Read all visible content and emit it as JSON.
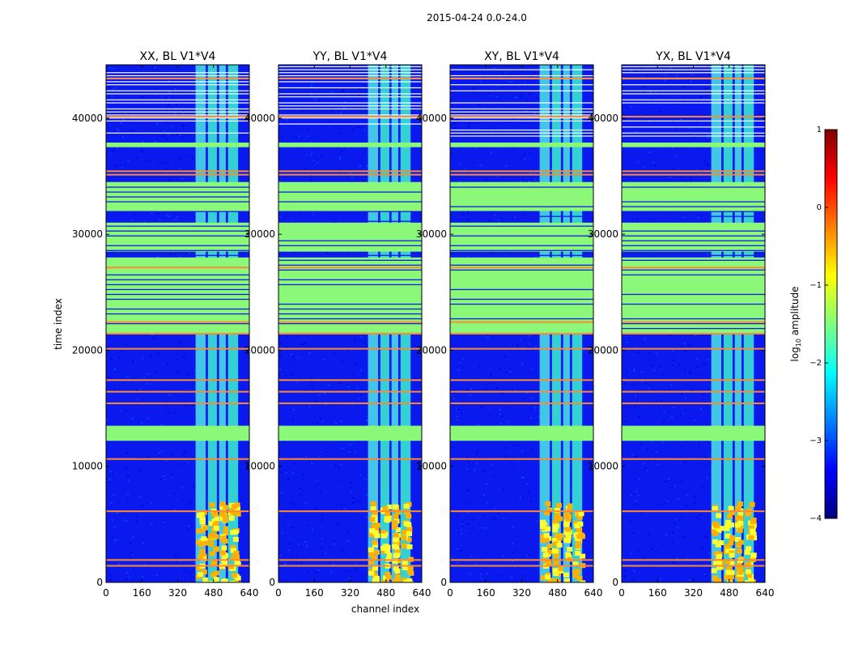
{
  "figure_title": "2015-04-24 0.0-24.0",
  "xlabel": "channel index",
  "ylabel": "time index",
  "colorbar_label": "log10 amplitude",
  "colorbar_label_main": "log",
  "colorbar_label_sub": "10",
  "colorbar_label_tail": " amplitude",
  "colormap": [
    "#00007f",
    "#0000ff",
    "#007fff",
    "#00ffff",
    "#7fff7f",
    "#ffff00",
    "#ff7f00",
    "#ff0000",
    "#7f0000"
  ],
  "chart_data": [
    {
      "type": "heatmap",
      "title": "XX, BL V1*V4",
      "xlabel": "channel index",
      "ylabel": "time index",
      "xlim": [
        0,
        640
      ],
      "ylim": [
        0,
        44600
      ],
      "xticks": [
        0,
        160,
        320,
        480,
        640
      ],
      "yticks": [
        0,
        10000,
        20000,
        30000,
        40000
      ],
      "band_channels": [
        [
          400,
          445
        ],
        [
          455,
          495
        ],
        [
          505,
          535
        ],
        [
          545,
          590
        ]
      ],
      "bright_time_ranges": [
        [
          21500,
          28000
        ],
        [
          28500,
          31000
        ],
        [
          32000,
          34500
        ],
        [
          12200,
          13500
        ],
        [
          37500,
          37900
        ]
      ],
      "flag_lines": [
        1500,
        2000,
        6200,
        10700,
        15500,
        16500,
        17500,
        20200,
        21500,
        22500,
        27200,
        35200,
        35500,
        40200,
        43500
      ],
      "colorbar": {
        "label": "log10 amplitude",
        "range": [
          -4,
          1
        ],
        "ticks": [
          1,
          0,
          -1,
          -2,
          -3,
          -4
        ]
      }
    },
    {
      "type": "heatmap",
      "title": "YY, BL V1*V4",
      "xlabel": "channel index",
      "ylabel": "time index",
      "xlim": [
        0,
        640
      ],
      "ylim": [
        0,
        44600
      ],
      "xticks": [
        0,
        160,
        320,
        480,
        640
      ],
      "yticks": [
        0,
        10000,
        20000,
        30000,
        40000
      ],
      "band_channels": [
        [
          400,
          445
        ],
        [
          455,
          495
        ],
        [
          505,
          535
        ],
        [
          545,
          590
        ]
      ],
      "bright_time_ranges": [
        [
          21500,
          28000
        ],
        [
          28500,
          31000
        ],
        [
          32000,
          34500
        ],
        [
          12200,
          13500
        ],
        [
          37500,
          37900
        ]
      ],
      "flag_lines": [
        1500,
        2000,
        6200,
        10700,
        15500,
        16500,
        17500,
        20200,
        21500,
        22500,
        27200,
        35200,
        35500,
        40200,
        43500
      ]
    },
    {
      "type": "heatmap",
      "title": "XY, BL V1*V4",
      "xlabel": "channel index",
      "ylabel": "time index",
      "xlim": [
        0,
        640
      ],
      "ylim": [
        0,
        44600
      ],
      "xticks": [
        0,
        160,
        320,
        480,
        640
      ],
      "yticks": [
        0,
        10000,
        20000,
        30000,
        40000
      ],
      "band_channels": [
        [
          400,
          445
        ],
        [
          455,
          495
        ],
        [
          505,
          535
        ],
        [
          545,
          590
        ]
      ],
      "bright_time_ranges": [
        [
          21500,
          28000
        ],
        [
          28500,
          31000
        ],
        [
          32000,
          34500
        ],
        [
          12200,
          13500
        ],
        [
          37500,
          37900
        ]
      ],
      "flag_lines": [
        1500,
        2000,
        6200,
        10700,
        15500,
        16500,
        17500,
        20200,
        21500,
        22500,
        27200,
        35200,
        35500,
        40200,
        43500
      ]
    },
    {
      "type": "heatmap",
      "title": "YX, BL V1*V4",
      "xlabel": "channel index",
      "ylabel": "time index",
      "xlim": [
        0,
        640
      ],
      "ylim": [
        0,
        44600
      ],
      "xticks": [
        0,
        160,
        320,
        480,
        640
      ],
      "yticks": [
        0,
        10000,
        20000,
        30000,
        40000
      ],
      "band_channels": [
        [
          400,
          445
        ],
        [
          455,
          495
        ],
        [
          505,
          535
        ],
        [
          545,
          590
        ]
      ],
      "bright_time_ranges": [
        [
          21500,
          28000
        ],
        [
          28500,
          31000
        ],
        [
          32000,
          34500
        ],
        [
          12200,
          13500
        ],
        [
          37500,
          37900
        ]
      ],
      "flag_lines": [
        1500,
        2000,
        6200,
        10700,
        15500,
        16500,
        17500,
        20200,
        21500,
        22500,
        27200,
        35200,
        35500,
        40200,
        43500
      ]
    }
  ]
}
